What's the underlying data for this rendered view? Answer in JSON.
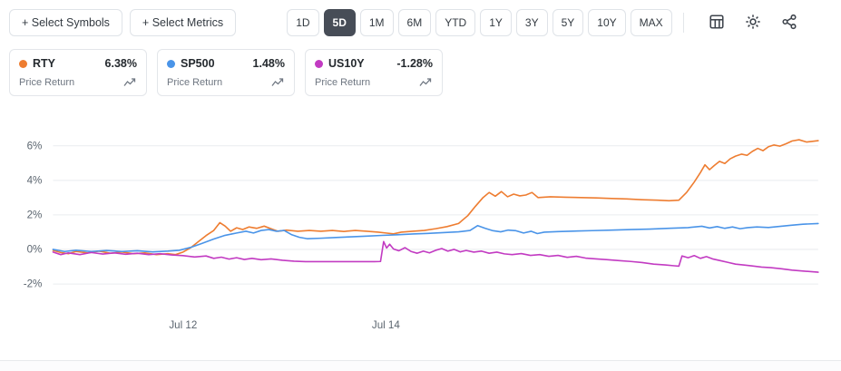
{
  "toolbar": {
    "select_symbols": "+ Select Symbols",
    "select_metrics": "+ Select Metrics",
    "ranges": [
      "1D",
      "5D",
      "1M",
      "6M",
      "YTD",
      "1Y",
      "3Y",
      "5Y",
      "10Y",
      "MAX"
    ],
    "active_range": "5D",
    "icons": [
      "table-icon",
      "gear-icon",
      "share-icon"
    ]
  },
  "legend": [
    {
      "symbol": "RTY",
      "value": "6.38%",
      "metric": "Price Return",
      "color": "#ee7d31"
    },
    {
      "symbol": "SP500",
      "value": "1.48%",
      "metric": "Price Return",
      "color": "#4a94e8"
    },
    {
      "symbol": "US10Y",
      "value": "-1.28%",
      "metric": "Price Return",
      "color": "#c23bc2"
    }
  ],
  "chart_data": {
    "type": "line",
    "title": "",
    "xlabel": "",
    "ylabel": "",
    "grid": true,
    "legend_position": "top-left-cards",
    "ylim": [
      -3.2,
      7.4
    ],
    "y_ticks": [
      6,
      4,
      2,
      0,
      -2
    ],
    "y_tick_labels": [
      "6%",
      "4%",
      "2%",
      "0%",
      "-2%"
    ],
    "x_ticks": [
      {
        "pos": 0.17,
        "label": "Jul 12"
      },
      {
        "pos": 0.435,
        "label": "Jul 14"
      }
    ],
    "series": [
      {
        "name": "RTY",
        "color": "#ee7d31",
        "metric": "Price Return",
        "change": 6.38,
        "points": [
          [
            0,
            -0.05
          ],
          [
            0.01,
            -0.18
          ],
          [
            0.02,
            -0.25
          ],
          [
            0.03,
            -0.12
          ],
          [
            0.045,
            -0.2
          ],
          [
            0.06,
            -0.1
          ],
          [
            0.075,
            -0.22
          ],
          [
            0.09,
            -0.15
          ],
          [
            0.105,
            -0.25
          ],
          [
            0.12,
            -0.2
          ],
          [
            0.135,
            -0.3
          ],
          [
            0.15,
            -0.25
          ],
          [
            0.16,
            -0.3
          ],
          [
            0.17,
            -0.15
          ],
          [
            0.18,
            0.1
          ],
          [
            0.19,
            0.45
          ],
          [
            0.2,
            0.8
          ],
          [
            0.21,
            1.1
          ],
          [
            0.218,
            1.55
          ],
          [
            0.225,
            1.35
          ],
          [
            0.232,
            1.05
          ],
          [
            0.24,
            1.25
          ],
          [
            0.248,
            1.15
          ],
          [
            0.256,
            1.3
          ],
          [
            0.266,
            1.22
          ],
          [
            0.276,
            1.35
          ],
          [
            0.286,
            1.18
          ],
          [
            0.294,
            1.05
          ],
          [
            0.305,
            1.12
          ],
          [
            0.32,
            1.05
          ],
          [
            0.335,
            1.1
          ],
          [
            0.35,
            1.05
          ],
          [
            0.365,
            1.1
          ],
          [
            0.38,
            1.04
          ],
          [
            0.395,
            1.1
          ],
          [
            0.41,
            1.05
          ],
          [
            0.425,
            1.0
          ],
          [
            0.435,
            0.95
          ],
          [
            0.445,
            0.9
          ],
          [
            0.455,
            1.0
          ],
          [
            0.47,
            1.05
          ],
          [
            0.485,
            1.1
          ],
          [
            0.5,
            1.2
          ],
          [
            0.515,
            1.32
          ],
          [
            0.53,
            1.5
          ],
          [
            0.542,
            1.95
          ],
          [
            0.552,
            2.5
          ],
          [
            0.562,
            3.0
          ],
          [
            0.57,
            3.3
          ],
          [
            0.578,
            3.08
          ],
          [
            0.586,
            3.35
          ],
          [
            0.594,
            3.05
          ],
          [
            0.602,
            3.2
          ],
          [
            0.61,
            3.1
          ],
          [
            0.618,
            3.15
          ],
          [
            0.626,
            3.3
          ],
          [
            0.634,
            3.0
          ],
          [
            0.65,
            3.05
          ],
          [
            0.67,
            3.02
          ],
          [
            0.69,
            3.0
          ],
          [
            0.71,
            2.98
          ],
          [
            0.73,
            2.95
          ],
          [
            0.75,
            2.92
          ],
          [
            0.77,
            2.88
          ],
          [
            0.79,
            2.85
          ],
          [
            0.805,
            2.82
          ],
          [
            0.818,
            2.85
          ],
          [
            0.828,
            3.3
          ],
          [
            0.838,
            3.9
          ],
          [
            0.846,
            4.45
          ],
          [
            0.852,
            4.9
          ],
          [
            0.858,
            4.62
          ],
          [
            0.864,
            4.85
          ],
          [
            0.871,
            5.1
          ],
          [
            0.878,
            4.98
          ],
          [
            0.885,
            5.25
          ],
          [
            0.892,
            5.4
          ],
          [
            0.9,
            5.52
          ],
          [
            0.907,
            5.45
          ],
          [
            0.914,
            5.68
          ],
          [
            0.921,
            5.85
          ],
          [
            0.928,
            5.72
          ],
          [
            0.935,
            5.95
          ],
          [
            0.942,
            6.05
          ],
          [
            0.95,
            5.98
          ],
          [
            0.958,
            6.12
          ],
          [
            0.966,
            6.28
          ],
          [
            0.975,
            6.35
          ],
          [
            0.985,
            6.22
          ],
          [
            1,
            6.3
          ]
        ]
      },
      {
        "name": "SP500",
        "color": "#4a94e8",
        "metric": "Price Return",
        "change": 1.48,
        "points": [
          [
            0,
            0
          ],
          [
            0.015,
            -0.12
          ],
          [
            0.03,
            -0.05
          ],
          [
            0.05,
            -0.12
          ],
          [
            0.07,
            -0.06
          ],
          [
            0.09,
            -0.12
          ],
          [
            0.11,
            -0.08
          ],
          [
            0.13,
            -0.14
          ],
          [
            0.15,
            -0.1
          ],
          [
            0.165,
            -0.05
          ],
          [
            0.18,
            0.12
          ],
          [
            0.195,
            0.35
          ],
          [
            0.21,
            0.6
          ],
          [
            0.225,
            0.82
          ],
          [
            0.24,
            0.95
          ],
          [
            0.252,
            1.05
          ],
          [
            0.262,
            0.95
          ],
          [
            0.272,
            1.1
          ],
          [
            0.282,
            1.15
          ],
          [
            0.292,
            1.05
          ],
          [
            0.302,
            1.1
          ],
          [
            0.312,
            0.85
          ],
          [
            0.322,
            0.7
          ],
          [
            0.332,
            0.62
          ],
          [
            0.35,
            0.65
          ],
          [
            0.37,
            0.69
          ],
          [
            0.39,
            0.73
          ],
          [
            0.41,
            0.77
          ],
          [
            0.43,
            0.81
          ],
          [
            0.45,
            0.85
          ],
          [
            0.47,
            0.89
          ],
          [
            0.49,
            0.93
          ],
          [
            0.51,
            0.97
          ],
          [
            0.53,
            1.02
          ],
          [
            0.545,
            1.1
          ],
          [
            0.555,
            1.38
          ],
          [
            0.565,
            1.22
          ],
          [
            0.575,
            1.08
          ],
          [
            0.585,
            1.02
          ],
          [
            0.595,
            1.12
          ],
          [
            0.605,
            1.08
          ],
          [
            0.615,
            0.95
          ],
          [
            0.625,
            1.05
          ],
          [
            0.633,
            0.92
          ],
          [
            0.642,
            1.0
          ],
          [
            0.66,
            1.03
          ],
          [
            0.68,
            1.06
          ],
          [
            0.705,
            1.09
          ],
          [
            0.73,
            1.12
          ],
          [
            0.755,
            1.15
          ],
          [
            0.78,
            1.18
          ],
          [
            0.805,
            1.22
          ],
          [
            0.83,
            1.26
          ],
          [
            0.848,
            1.34
          ],
          [
            0.858,
            1.24
          ],
          [
            0.868,
            1.32
          ],
          [
            0.878,
            1.22
          ],
          [
            0.888,
            1.3
          ],
          [
            0.898,
            1.2
          ],
          [
            0.908,
            1.26
          ],
          [
            0.92,
            1.3
          ],
          [
            0.935,
            1.27
          ],
          [
            0.95,
            1.33
          ],
          [
            0.965,
            1.4
          ],
          [
            0.98,
            1.46
          ],
          [
            1,
            1.5
          ]
        ]
      },
      {
        "name": "US10Y",
        "color": "#c23bc2",
        "metric": "Price Return",
        "change": -1.28,
        "points": [
          [
            0,
            -0.15
          ],
          [
            0.01,
            -0.3
          ],
          [
            0.02,
            -0.2
          ],
          [
            0.035,
            -0.3
          ],
          [
            0.05,
            -0.18
          ],
          [
            0.065,
            -0.27
          ],
          [
            0.08,
            -0.2
          ],
          [
            0.095,
            -0.28
          ],
          [
            0.11,
            -0.22
          ],
          [
            0.125,
            -0.3
          ],
          [
            0.14,
            -0.25
          ],
          [
            0.155,
            -0.32
          ],
          [
            0.17,
            -0.36
          ],
          [
            0.185,
            -0.44
          ],
          [
            0.2,
            -0.38
          ],
          [
            0.21,
            -0.52
          ],
          [
            0.22,
            -0.45
          ],
          [
            0.23,
            -0.56
          ],
          [
            0.24,
            -0.48
          ],
          [
            0.25,
            -0.58
          ],
          [
            0.26,
            -0.52
          ],
          [
            0.272,
            -0.6
          ],
          [
            0.285,
            -0.55
          ],
          [
            0.3,
            -0.63
          ],
          [
            0.315,
            -0.68
          ],
          [
            0.33,
            -0.71
          ],
          [
            0.36,
            -0.71
          ],
          [
            0.39,
            -0.71
          ],
          [
            0.42,
            -0.71
          ],
          [
            0.428,
            -0.7
          ],
          [
            0.432,
            0.45
          ],
          [
            0.436,
            0.08
          ],
          [
            0.44,
            0.3
          ],
          [
            0.445,
            0.02
          ],
          [
            0.452,
            -0.08
          ],
          [
            0.46,
            0.1
          ],
          [
            0.468,
            -0.12
          ],
          [
            0.476,
            -0.22
          ],
          [
            0.484,
            -0.1
          ],
          [
            0.492,
            -0.2
          ],
          [
            0.5,
            -0.05
          ],
          [
            0.508,
            0.05
          ],
          [
            0.516,
            -0.1
          ],
          [
            0.524,
            0
          ],
          [
            0.532,
            -0.14
          ],
          [
            0.54,
            -0.06
          ],
          [
            0.55,
            -0.16
          ],
          [
            0.56,
            -0.1
          ],
          [
            0.57,
            -0.22
          ],
          [
            0.58,
            -0.16
          ],
          [
            0.59,
            -0.26
          ],
          [
            0.6,
            -0.3
          ],
          [
            0.612,
            -0.24
          ],
          [
            0.624,
            -0.35
          ],
          [
            0.636,
            -0.3
          ],
          [
            0.648,
            -0.4
          ],
          [
            0.66,
            -0.35
          ],
          [
            0.672,
            -0.46
          ],
          [
            0.684,
            -0.4
          ],
          [
            0.696,
            -0.5
          ],
          [
            0.71,
            -0.55
          ],
          [
            0.725,
            -0.6
          ],
          [
            0.74,
            -0.65
          ],
          [
            0.755,
            -0.7
          ],
          [
            0.77,
            -0.76
          ],
          [
            0.785,
            -0.85
          ],
          [
            0.8,
            -0.9
          ],
          [
            0.812,
            -0.95
          ],
          [
            0.818,
            -0.97
          ],
          [
            0.822,
            -0.38
          ],
          [
            0.83,
            -0.48
          ],
          [
            0.838,
            -0.36
          ],
          [
            0.846,
            -0.52
          ],
          [
            0.854,
            -0.42
          ],
          [
            0.862,
            -0.55
          ],
          [
            0.872,
            -0.65
          ],
          [
            0.882,
            -0.75
          ],
          [
            0.892,
            -0.85
          ],
          [
            0.902,
            -0.9
          ],
          [
            0.914,
            -0.96
          ],
          [
            0.926,
            -1.02
          ],
          [
            0.938,
            -1.06
          ],
          [
            0.952,
            -1.12
          ],
          [
            0.966,
            -1.2
          ],
          [
            0.982,
            -1.26
          ],
          [
            1,
            -1.32
          ]
        ]
      }
    ]
  }
}
